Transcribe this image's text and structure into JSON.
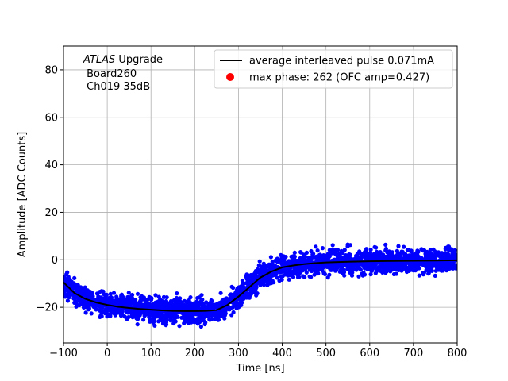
{
  "chart_data": {
    "type": "scatter",
    "xlabel": "Time [ns]",
    "ylabel": "Amplitude [ADC Counts]",
    "xlim": [
      -100,
      800
    ],
    "ylim": [
      -35,
      90
    ],
    "xticks": [
      -100,
      0,
      100,
      200,
      300,
      400,
      500,
      600,
      700,
      800
    ],
    "yticks": [
      -20,
      0,
      20,
      40,
      60,
      80
    ],
    "grid": true,
    "annotation": {
      "experiment": "ATLAS",
      "suffix": " Upgrade",
      "line2": " Board260",
      "line3": " Ch019 35dB"
    },
    "legend": {
      "placement": "top-right",
      "entries": [
        "average interleaved pulse 0.071mA",
        "max phase: 262 (OFC amp=0.427)"
      ]
    },
    "colors": {
      "samples": "#0000ff",
      "average": "#000000",
      "max_phase": "#ff0000"
    },
    "average_pulse": {
      "name": "average interleaved pulse 0.071mA",
      "x": [
        -100,
        -75,
        -50,
        -25,
        0,
        25,
        50,
        75,
        100,
        125,
        150,
        175,
        200,
        225,
        250,
        275,
        300,
        325,
        350,
        375,
        400,
        425,
        450,
        475,
        500,
        550,
        600,
        650,
        700,
        750,
        800
      ],
      "y": [
        -9.5,
        -14,
        -16.5,
        -18,
        -19,
        -19.8,
        -20.3,
        -20.7,
        -21,
        -21.3,
        -21.5,
        -21.6,
        -21.6,
        -21.5,
        -21.2,
        -19,
        -15.5,
        -11.5,
        -7.5,
        -5,
        -3.2,
        -2.4,
        -1.8,
        -1.4,
        -1.1,
        -0.8,
        -0.6,
        -0.5,
        -0.4,
        -0.3,
        -0.2
      ]
    },
    "samples": {
      "x_range": [
        -100,
        800
      ],
      "spread": 3.2
    },
    "max_phase_point": {
      "label": "max phase: 262 (OFC amp=0.427)"
    }
  }
}
